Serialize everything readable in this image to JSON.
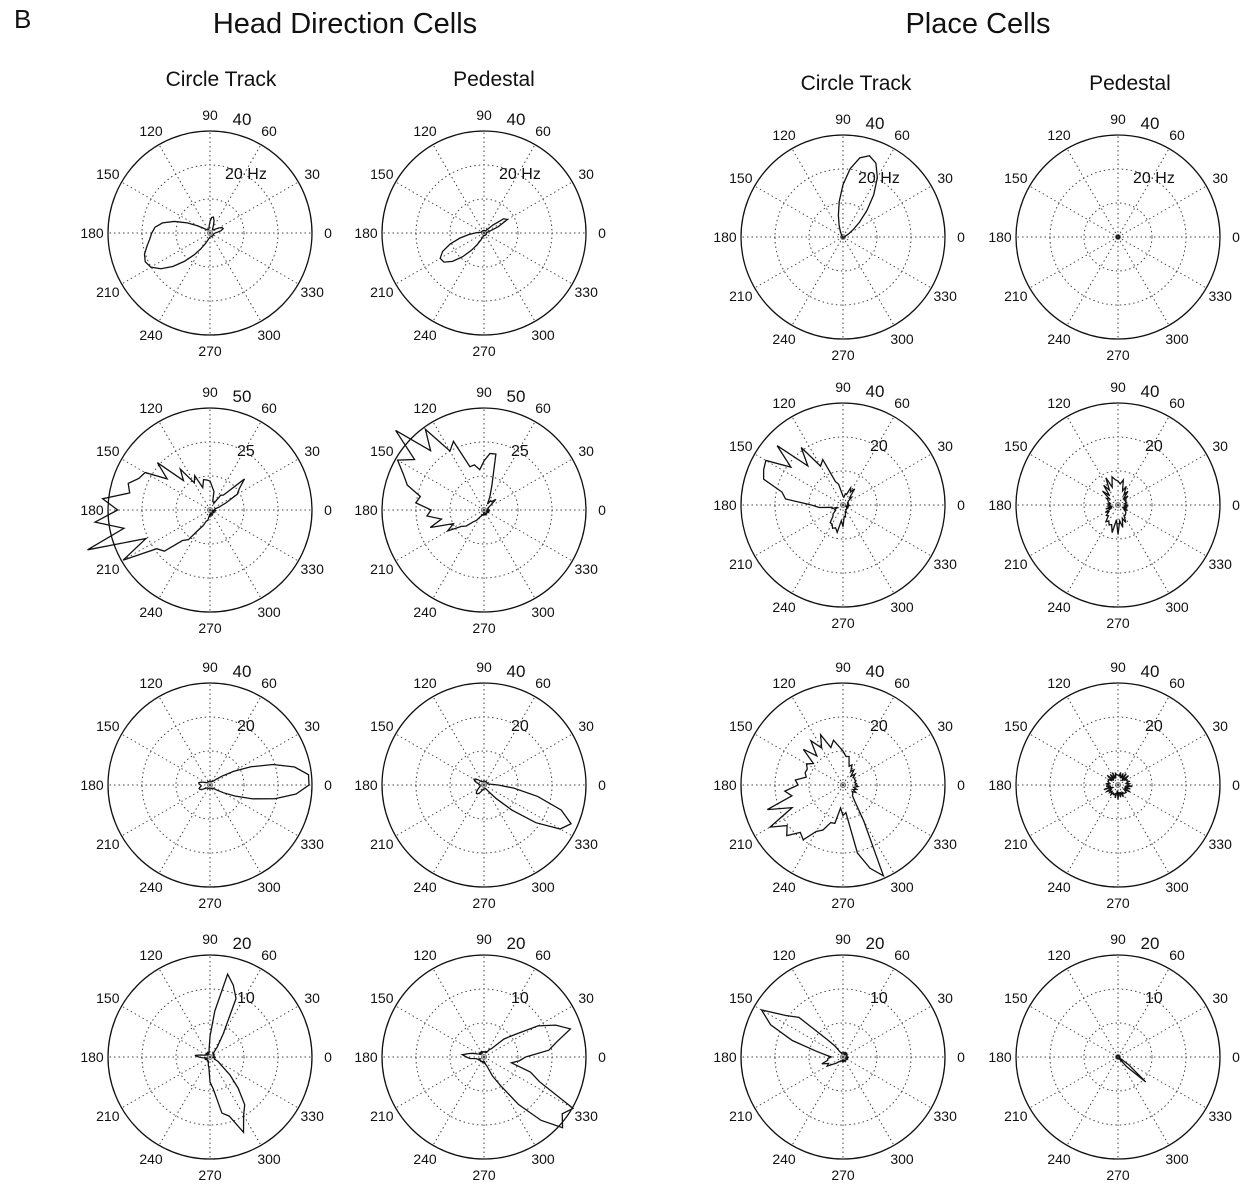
{
  "panel_label": "B",
  "groups": [
    {
      "title": "Head Direction Cells",
      "columns": [
        "Circle Track",
        "Pedestal"
      ]
    },
    {
      "title": "Place Cells",
      "columns": [
        "Circle Track",
        "Pedestal"
      ]
    }
  ],
  "angle_labels": [
    "0",
    "30",
    "60",
    "90",
    "120",
    "150",
    "180",
    "210",
    "240",
    "270",
    "300",
    "330"
  ],
  "chart_data": [
    {
      "type": "polar",
      "group": "Head Direction Cells",
      "condition": "Circle Track",
      "row": 1,
      "rmax": 40,
      "rmax_label": "40",
      "mid_label": "20 Hz",
      "lobes": [
        {
          "center": 205,
          "width": 40,
          "peak": 26
        },
        {
          "center": 170,
          "width": 25,
          "peak": 13
        },
        {
          "center": 80,
          "width": 20,
          "peak": 5
        },
        {
          "center": 20,
          "width": 20,
          "peak": 4
        }
      ],
      "base": 1.5
    },
    {
      "type": "polar",
      "group": "Head Direction Cells",
      "condition": "Pedestal",
      "row": 1,
      "rmax": 40,
      "rmax_label": "40",
      "mid_label": "20 Hz",
      "lobes": [
        {
          "center": 212,
          "width": 32,
          "peak": 19
        },
        {
          "center": 32,
          "width": 14,
          "peak": 10
        }
      ],
      "base": 1
    },
    {
      "type": "polar",
      "group": "Head Direction Cells",
      "condition": "Circle Track",
      "row": 2,
      "rmax": 50,
      "rmax_label": "50",
      "mid_label": "25",
      "lobes": [
        {
          "center": 165,
          "width": 75,
          "peak": 33
        },
        {
          "center": 200,
          "width": 45,
          "peak": 26
        },
        {
          "center": 38,
          "width": 20,
          "peak": 18
        },
        {
          "center": 90,
          "width": 20,
          "peak": 8
        }
      ],
      "base": 2,
      "jagged": 0.25
    },
    {
      "type": "polar",
      "group": "Head Direction Cells",
      "condition": "Pedestal",
      "row": 2,
      "rmax": 50,
      "rmax_label": "50",
      "mid_label": "25",
      "lobes": [
        {
          "center": 140,
          "width": 55,
          "peak": 47
        },
        {
          "center": 200,
          "width": 40,
          "peak": 16
        },
        {
          "center": 82,
          "width": 16,
          "peak": 22
        },
        {
          "center": 45,
          "width": 15,
          "peak": 5
        }
      ],
      "base": 2,
      "jagged": 0.2
    },
    {
      "type": "polar",
      "group": "Head Direction Cells",
      "condition": "Circle Track",
      "row": 3,
      "rmax": 40,
      "rmax_label": "40",
      "mid_label": "20",
      "lobes": [
        {
          "center": 3,
          "width": 32,
          "peak": 38
        },
        {
          "center": 170,
          "width": 20,
          "peak": 3
        },
        {
          "center": 200,
          "width": 20,
          "peak": 3
        }
      ],
      "base": 1.5
    },
    {
      "type": "polar",
      "group": "Head Direction Cells",
      "condition": "Pedestal",
      "row": 3,
      "rmax": 40,
      "rmax_label": "40",
      "mid_label": "20",
      "lobes": [
        {
          "center": 335,
          "width": 24,
          "peak": 36
        },
        {
          "center": 150,
          "width": 20,
          "peak": 3
        },
        {
          "center": 230,
          "width": 25,
          "peak": 3
        }
      ],
      "base": 1.5
    },
    {
      "type": "polar",
      "group": "Head Direction Cells",
      "condition": "Circle Track",
      "row": 4,
      "rmax": 20,
      "rmax_label": "20",
      "mid_label": "10",
      "lobes": [
        {
          "center": 74,
          "width": 18,
          "peak": 16
        },
        {
          "center": 295,
          "width": 30,
          "peak": 14
        },
        {
          "center": 175,
          "width": 14,
          "peak": 2
        }
      ],
      "base": 0.8,
      "jagged": 0.15
    },
    {
      "type": "polar",
      "group": "Head Direction Cells",
      "condition": "Pedestal",
      "row": 4,
      "rmax": 20,
      "rmax_label": "20",
      "mid_label": "10",
      "lobes": [
        {
          "center": 18,
          "width": 28,
          "peak": 16
        },
        {
          "center": 322,
          "width": 28,
          "peak": 20
        },
        {
          "center": 175,
          "width": 20,
          "peak": 3
        }
      ],
      "base": 1,
      "jagged": 0.15
    },
    {
      "type": "polar",
      "group": "Place Cells",
      "condition": "Circle Track",
      "row": 1,
      "rmax": 40,
      "rmax_label": "40",
      "mid_label": "20 Hz",
      "lobes": [
        {
          "center": 72,
          "width": 36,
          "peak": 33
        }
      ],
      "base": 0.5
    },
    {
      "type": "polar",
      "group": "Place Cells",
      "condition": "Pedestal",
      "row": 1,
      "rmax": 40,
      "rmax_label": "40",
      "mid_label": "20 Hz",
      "lobes": [],
      "base": 0.6
    },
    {
      "type": "polar",
      "group": "Place Cells",
      "condition": "Circle Track",
      "row": 2,
      "rmax": 40,
      "rmax_label": "40",
      "mid_label": "20",
      "lobes": [
        {
          "center": 158,
          "width": 32,
          "peak": 30
        },
        {
          "center": 125,
          "width": 30,
          "peak": 18
        },
        {
          "center": 250,
          "width": 40,
          "peak": 8
        },
        {
          "center": 60,
          "width": 25,
          "peak": 5
        }
      ],
      "base": 2,
      "jagged": 0.25
    },
    {
      "type": "polar",
      "group": "Place Cells",
      "condition": "Pedestal",
      "row": 2,
      "rmax": 40,
      "rmax_label": "40",
      "mid_label": "20",
      "lobes": [
        {
          "center": 100,
          "width": 60,
          "peak": 7
        },
        {
          "center": 260,
          "width": 60,
          "peak": 6
        }
      ],
      "base": 3,
      "jagged": 0.35
    },
    {
      "type": "polar",
      "group": "Place Cells",
      "condition": "Circle Track",
      "row": 3,
      "rmax": 40,
      "rmax_label": "40",
      "mid_label": "20",
      "lobes": [
        {
          "center": 215,
          "width": 60,
          "peak": 24
        },
        {
          "center": 290,
          "width": 14,
          "peak": 34
        },
        {
          "center": 120,
          "width": 60,
          "peak": 14
        }
      ],
      "base": 5,
      "jagged": 0.2
    },
    {
      "type": "polar",
      "group": "Place Cells",
      "condition": "Pedestal",
      "row": 3,
      "rmax": 40,
      "rmax_label": "40",
      "mid_label": "20",
      "lobes": [],
      "base": 4,
      "jagged": 0.45
    },
    {
      "type": "polar",
      "group": "Place Cells",
      "condition": "Circle Track",
      "row": 4,
      "rmax": 20,
      "rmax_label": "20",
      "mid_label": "10",
      "lobes": [
        {
          "center": 150,
          "width": 22,
          "peak": 17
        },
        {
          "center": 200,
          "width": 30,
          "peak": 3
        }
      ],
      "base": 0.8,
      "jagged": 0.15
    },
    {
      "type": "polar",
      "group": "Place Cells",
      "condition": "Pedestal",
      "row": 4,
      "rmax": 20,
      "rmax_label": "20",
      "mid_label": "10",
      "lobes": [
        {
          "center": 318,
          "width": 8,
          "peak": 7
        }
      ],
      "base": 0.3
    }
  ]
}
